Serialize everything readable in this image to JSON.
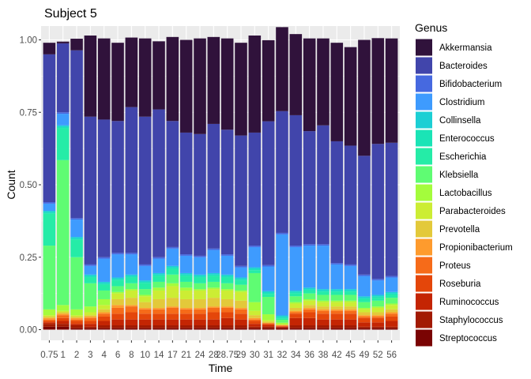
{
  "chart_data": {
    "type": "bar",
    "stacked": true,
    "title": "Subject 5",
    "xlabel": "Time",
    "ylabel": "Count",
    "ylim": [
      0,
      1
    ],
    "yticks": [
      "0.00",
      "0.25",
      "0.50",
      "0.75",
      "1.00"
    ],
    "categories": [
      "0.75",
      "1",
      "2",
      "3",
      "4",
      "6",
      "8",
      "10",
      "14",
      "17",
      "21",
      "24",
      "28",
      "28.75",
      "29",
      "30",
      "31",
      "32",
      "34",
      "36",
      "38",
      "42",
      "45",
      "49",
      "52",
      "56"
    ],
    "legend": {
      "title": "Genus",
      "position": "right"
    },
    "background": "#ebebeb",
    "grid": true,
    "series": [
      {
        "name": "Streptococcus",
        "color": "#7a0403",
        "values": [
          0.01,
          0.01,
          0.005,
          0.005,
          0.005,
          0.005,
          0.005,
          0.005,
          0.005,
          0.005,
          0.005,
          0.005,
          0.005,
          0.005,
          0.005,
          0.005,
          0.005,
          0.005,
          0.005,
          0.005,
          0.005,
          0.005,
          0.005,
          0.005,
          0.005,
          0.005
        ]
      },
      {
        "name": "Staphylococcus",
        "color": "#a21a02",
        "values": [
          0.01,
          0.01,
          0.01,
          0.005,
          0.01,
          0.01,
          0.01,
          0.01,
          0.01,
          0.01,
          0.01,
          0.01,
          0.01,
          0.01,
          0.01,
          0.005,
          0.005,
          0.003,
          0.01,
          0.01,
          0.01,
          0.01,
          0.01,
          0.005,
          0.005,
          0.005
        ]
      },
      {
        "name": "Ruminococcus",
        "color": "#c42503",
        "values": [
          0.005,
          0.01,
          0.005,
          0.01,
          0.015,
          0.02,
          0.02,
          0.02,
          0.02,
          0.02,
          0.02,
          0.02,
          0.02,
          0.025,
          0.02,
          0.01,
          0.005,
          0.002,
          0.025,
          0.025,
          0.02,
          0.02,
          0.02,
          0.015,
          0.015,
          0.02
        ]
      },
      {
        "name": "Roseburia",
        "color": "#e4460a",
        "values": [
          0.005,
          0.01,
          0.01,
          0.01,
          0.015,
          0.02,
          0.025,
          0.02,
          0.02,
          0.02,
          0.02,
          0.02,
          0.025,
          0.02,
          0.02,
          0.01,
          0.005,
          0.002,
          0.015,
          0.02,
          0.02,
          0.02,
          0.02,
          0.015,
          0.015,
          0.015
        ]
      },
      {
        "name": "Proteus",
        "color": "#f66b19",
        "values": [
          0.005,
          0.01,
          0.005,
          0.01,
          0.01,
          0.02,
          0.02,
          0.015,
          0.015,
          0.02,
          0.015,
          0.015,
          0.015,
          0.015,
          0.015,
          0.005,
          0.002,
          0.002,
          0.005,
          0.01,
          0.01,
          0.01,
          0.01,
          0.005,
          0.005,
          0.01
        ]
      },
      {
        "name": "Propionibacterium",
        "color": "#fe9b2d",
        "values": [
          0.005,
          0.005,
          0.005,
          0.005,
          0.005,
          0.01,
          0.005,
          0.005,
          0.005,
          0.005,
          0.005,
          0.005,
          0.005,
          0.005,
          0.005,
          0.005,
          0.001,
          0.001,
          0.005,
          0.005,
          0.005,
          0.005,
          0.005,
          0.005,
          0.005,
          0.005
        ]
      },
      {
        "name": "Prevotella",
        "color": "#e3c93a",
        "values": [
          0.005,
          0.005,
          0.005,
          0.005,
          0.01,
          0.02,
          0.025,
          0.02,
          0.03,
          0.03,
          0.03,
          0.03,
          0.03,
          0.025,
          0.025,
          0.01,
          0.005,
          0.002,
          0.01,
          0.01,
          0.01,
          0.01,
          0.01,
          0.01,
          0.01,
          0.01
        ]
      },
      {
        "name": "Parabacteroides",
        "color": "#cced34",
        "values": [
          0.005,
          0.005,
          0.005,
          0.01,
          0.015,
          0.02,
          0.025,
          0.02,
          0.03,
          0.04,
          0.03,
          0.03,
          0.03,
          0.03,
          0.03,
          0.015,
          0.005,
          0.002,
          0.015,
          0.015,
          0.015,
          0.015,
          0.015,
          0.01,
          0.015,
          0.015
        ]
      },
      {
        "name": "Lactobacillus",
        "color": "#a4fc3c",
        "values": [
          0.02,
          0.02,
          0.02,
          0.02,
          0.02,
          0.005,
          0.005,
          0.005,
          0.01,
          0.01,
          0.01,
          0.005,
          0.005,
          0.005,
          0.005,
          0.03,
          0.02,
          0.005,
          0.005,
          0.005,
          0.005,
          0.005,
          0.005,
          0.005,
          0.005,
          0.005
        ]
      },
      {
        "name": "Klebsiella",
        "color": "#5ffc73",
        "values": [
          0.22,
          0.5,
          0.18,
          0.08,
          0.03,
          0.02,
          0.02,
          0.02,
          0.02,
          0.03,
          0.02,
          0.02,
          0.02,
          0.02,
          0.02,
          0.1,
          0.06,
          0.01,
          0.02,
          0.02,
          0.02,
          0.02,
          0.02,
          0.02,
          0.02,
          0.02
        ]
      },
      {
        "name": "Escherichia",
        "color": "#25eca7",
        "values": [
          0.11,
          0.11,
          0.06,
          0.02,
          0.02,
          0.02,
          0.02,
          0.02,
          0.02,
          0.02,
          0.02,
          0.02,
          0.02,
          0.02,
          0.015,
          0.01,
          0.01,
          0.005,
          0.01,
          0.01,
          0.01,
          0.01,
          0.01,
          0.01,
          0.01,
          0.01
        ]
      },
      {
        "name": "Enterococcus",
        "color": "#1ae4b6",
        "values": [
          0.005,
          0.005,
          0.005,
          0.005,
          0.005,
          0.005,
          0.005,
          0.005,
          0.005,
          0.005,
          0.005,
          0.005,
          0.005,
          0.005,
          0.005,
          0.005,
          0.005,
          0.005,
          0.005,
          0.005,
          0.005,
          0.005,
          0.005,
          0.005,
          0.005,
          0.005
        ]
      },
      {
        "name": "Collinsella",
        "color": "#1bcfd4",
        "values": [
          0.005,
          0.005,
          0.005,
          0.005,
          0.005,
          0.005,
          0.005,
          0.005,
          0.005,
          0.005,
          0.005,
          0.005,
          0.005,
          0.005,
          0.005,
          0.005,
          0.005,
          0.005,
          0.005,
          0.005,
          0.005,
          0.005,
          0.005,
          0.005,
          0.005,
          0.005
        ]
      },
      {
        "name": "Clostridium",
        "color": "#3e9bfe",
        "values": [
          0.025,
          0.04,
          0.06,
          0.03,
          0.08,
          0.08,
          0.07,
          0.05,
          0.05,
          0.06,
          0.06,
          0.06,
          0.08,
          0.065,
          0.035,
          0.07,
          0.085,
          0.28,
          0.15,
          0.145,
          0.15,
          0.085,
          0.08,
          0.07,
          0.05,
          0.05
        ]
      },
      {
        "name": "Bifidobacterium",
        "color": "#4669e0",
        "values": [
          0.005,
          0.005,
          0.005,
          0.005,
          0.005,
          0.005,
          0.005,
          0.005,
          0.005,
          0.005,
          0.005,
          0.005,
          0.005,
          0.005,
          0.005,
          0.005,
          0.005,
          0.005,
          0.005,
          0.005,
          0.005,
          0.005,
          0.005,
          0.005,
          0.005,
          0.005
        ]
      },
      {
        "name": "Bacteroides",
        "color": "#4145ab",
        "values": [
          0.51,
          0.238,
          0.579,
          0.51,
          0.475,
          0.455,
          0.503,
          0.51,
          0.51,
          0.435,
          0.42,
          0.42,
          0.43,
          0.43,
          0.45,
          0.39,
          0.496,
          0.42,
          0.45,
          0.39,
          0.41,
          0.42,
          0.41,
          0.41,
          0.466,
          0.46
        ]
      },
      {
        "name": "Akkermansia",
        "color": "#30123b",
        "values": [
          0.04,
          0.006,
          0.04,
          0.28,
          0.28,
          0.27,
          0.24,
          0.27,
          0.235,
          0.29,
          0.32,
          0.33,
          0.3,
          0.315,
          0.32,
          0.335,
          0.28,
          0.29,
          0.28,
          0.32,
          0.3,
          0.34,
          0.34,
          0.4,
          0.365,
          0.36
        ]
      }
    ]
  }
}
